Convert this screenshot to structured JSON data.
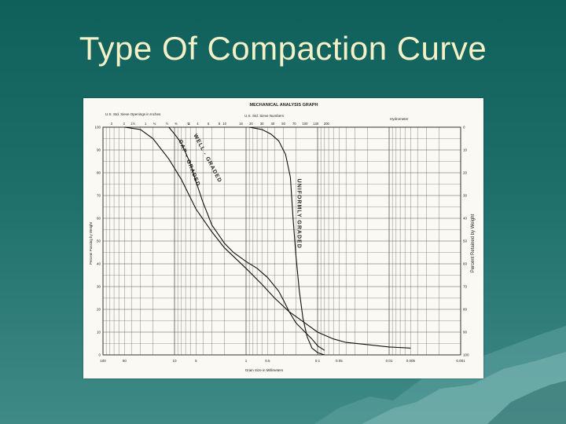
{
  "slide": {
    "title": "Type Of Compaction Curve"
  },
  "colors": {
    "background": "#1e6f6a",
    "title": "#f4f1c8",
    "paper": "#fbf9f3",
    "grid": "#444444",
    "curve": "#111111"
  },
  "chart_data": {
    "type": "line",
    "title": "MECHANICAL ANALYSIS GRAPH",
    "header_left": "U.S. Std. Sieve Openings in Inches",
    "header_mid": "U.S. Std. Sieve Numbers",
    "header_right": "Hydrometer",
    "xlabel": "Grain Size in Millimeters",
    "ylabel_left": "Percent Passing by Weight",
    "ylabel_right": "Percent Retained by Weight",
    "x_scale": "log",
    "x_reversed": true,
    "xlim": [
      100,
      0.001
    ],
    "ylim": [
      0,
      100
    ],
    "x_ticks": [
      "100",
      "50",
      "10",
      "5",
      "1",
      "0.5",
      "0.1",
      "0.05",
      "0.01",
      "0.005",
      "0.001"
    ],
    "x_tick_values": [
      100,
      50,
      10,
      5,
      1,
      0.5,
      0.1,
      0.05,
      0.01,
      0.005,
      0.001
    ],
    "y_ticks_left": [
      "0",
      "10",
      "20",
      "30",
      "40",
      "50",
      "60",
      "70",
      "80",
      "90",
      "100"
    ],
    "y_ticks_right": [
      "100",
      "90",
      "80",
      "70",
      "60",
      "50",
      "40",
      "30",
      "20",
      "10",
      "0"
    ],
    "sieve_inch_labels": [
      "3",
      "2",
      "1½",
      "1",
      "¾",
      "½",
      "⅜",
      "¼"
    ],
    "sieve_number_labels": [
      "3",
      "4",
      "6",
      "8",
      "10",
      "16",
      "20",
      "30",
      "40",
      "50",
      "70",
      "100",
      "140",
      "200"
    ],
    "grid": true,
    "series": [
      {
        "name": "WELL GRADED",
        "points": [
          [
            50,
            100
          ],
          [
            30,
            99
          ],
          [
            20,
            95
          ],
          [
            12,
            86
          ],
          [
            8,
            77
          ],
          [
            5,
            64
          ],
          [
            3,
            54
          ],
          [
            2,
            47
          ],
          [
            1,
            38
          ],
          [
            0.6,
            31
          ],
          [
            0.4,
            25
          ],
          [
            0.25,
            19
          ],
          [
            0.15,
            14
          ],
          [
            0.1,
            10
          ],
          [
            0.06,
            7
          ],
          [
            0.04,
            5.5
          ],
          [
            0.02,
            4.5
          ],
          [
            0.01,
            3.5
          ],
          [
            0.005,
            3
          ]
        ]
      },
      {
        "name": "GAP - GRADED",
        "points": [
          [
            12,
            100
          ],
          [
            10,
            97
          ],
          [
            8,
            93
          ],
          [
            6,
            84
          ],
          [
            5,
            76
          ],
          [
            4,
            67
          ],
          [
            3,
            57
          ],
          [
            2,
            49
          ],
          [
            1.5,
            45
          ],
          [
            1,
            41
          ],
          [
            0.7,
            38
          ],
          [
            0.5,
            34
          ],
          [
            0.35,
            28
          ],
          [
            0.3,
            24
          ],
          [
            0.25,
            19
          ],
          [
            0.2,
            14
          ],
          [
            0.15,
            10
          ],
          [
            0.12,
            7
          ],
          [
            0.1,
            4
          ],
          [
            0.08,
            2
          ]
        ]
      },
      {
        "name": "UNIFORMLY GRADED",
        "points": [
          [
            0.9,
            100
          ],
          [
            0.6,
            99
          ],
          [
            0.45,
            97
          ],
          [
            0.35,
            94
          ],
          [
            0.28,
            88
          ],
          [
            0.24,
            78
          ],
          [
            0.22,
            60
          ],
          [
            0.2,
            43
          ],
          [
            0.18,
            28
          ],
          [
            0.16,
            16
          ],
          [
            0.14,
            8
          ],
          [
            0.12,
            3
          ],
          [
            0.1,
            1
          ],
          [
            0.08,
            0
          ]
        ]
      }
    ],
    "annotations": [
      "WELL - GRADED",
      "GAP - GRADED",
      "UNIFORMLY GRADED"
    ]
  }
}
